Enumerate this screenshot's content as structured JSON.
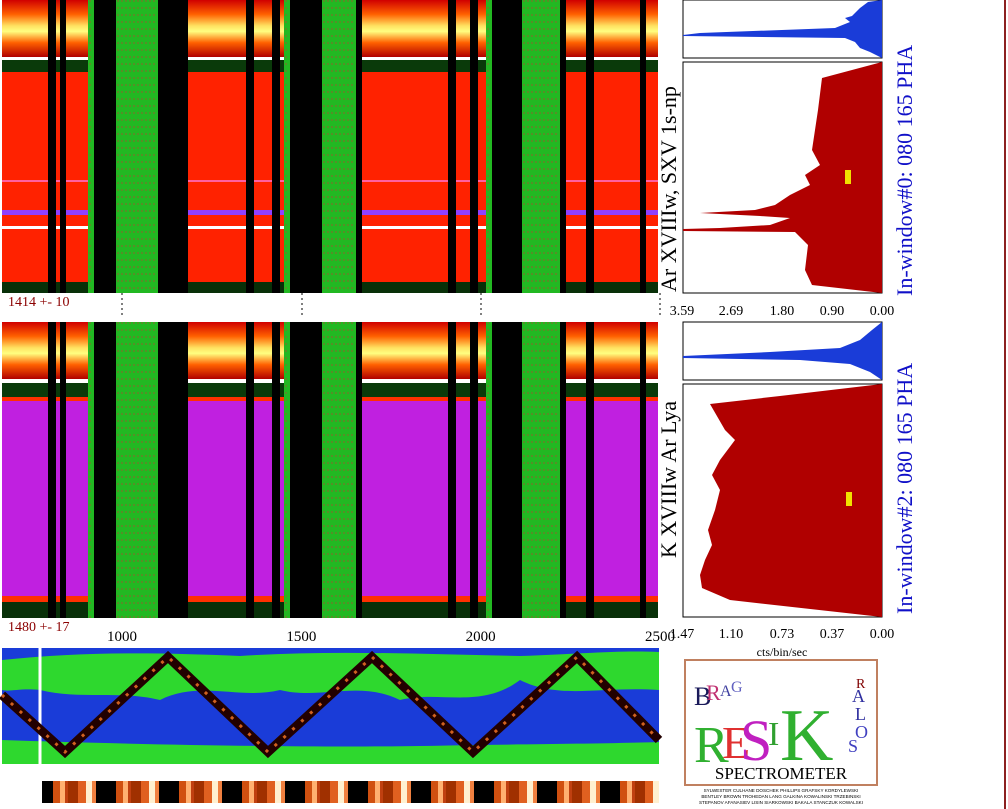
{
  "chart_data": [
    {
      "type": "heatmap",
      "name": "panel-window-0",
      "line_label": "Ar XVIIIw, SXV 1s-np",
      "window_label": "In-window#0:  080 165 PHA",
      "marker_text": "1414  +-   10",
      "profile_x_ticks": [
        "3.59",
        "2.69",
        "1.80",
        "0.90",
        "0.00"
      ]
    },
    {
      "type": "heatmap",
      "name": "panel-window-2",
      "line_label": "K XVIIIw  Ar Lya",
      "window_label": "In-window#2:  080 165 PHA",
      "marker_text": "1480  +-   17",
      "profile_x_ticks": [
        "1.47",
        "1.10",
        "0.73",
        "0.37",
        "0.00"
      ],
      "profile_xlabel": "cts/bin/sec",
      "time_axis_ticks": [
        1000,
        1500,
        2000,
        2500
      ]
    }
  ],
  "logo": {
    "title": "SPECTROMETER",
    "letters": [
      "B",
      "R",
      "A",
      "G",
      "R",
      "E",
      "S",
      "I",
      "K",
      "S",
      "O",
      "L",
      "A",
      "R"
    ],
    "credits_line1": "SYLWESTER  CULHANE  DOSCHEK  PHILLIPS  GRAFSKY  KORDYLEWSKI",
    "credits_line2": "BENTLEY  BROWN  TROHEDAN  LANG  GALKINA  KOWALINSKI  TRZEBINSKI",
    "credits_line3": "STEPANOV  AFANASIEV  LISIN  SIARKOWSKI  BAKALA  STANCZUK  KOWALSKI"
  },
  "colors": {
    "bg_red": "#ff2200",
    "bg_magenta": "#c020e0",
    "green": "#20c020",
    "blue": "#1030d0",
    "profile_fill": "#b00000",
    "profile_blue": "#1a3cd8",
    "label_blue": "#1010c8",
    "label_red": "#8b0000"
  }
}
